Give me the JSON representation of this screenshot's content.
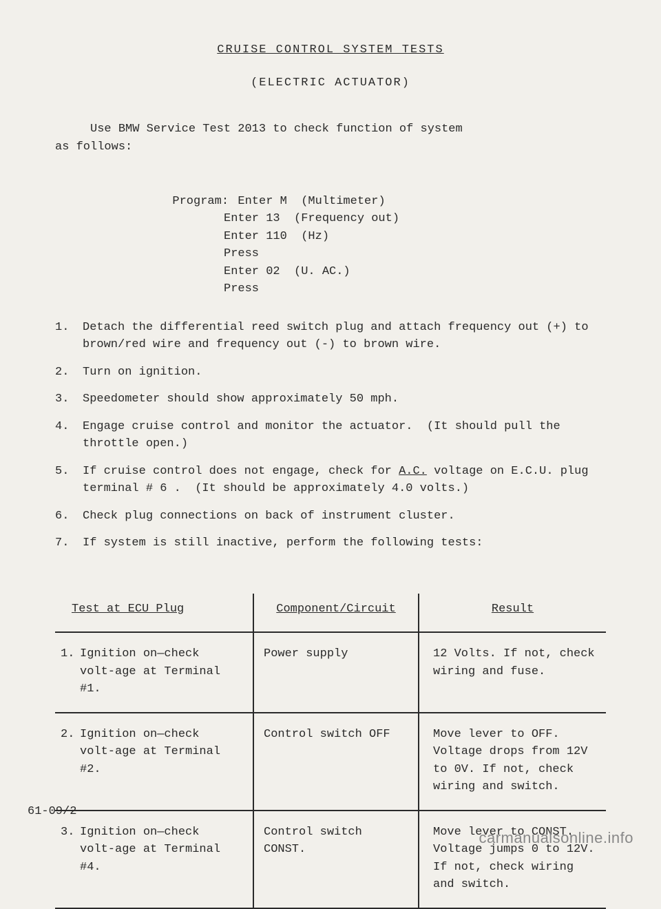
{
  "title": "CRUISE  CONTROL  SYSTEM  TESTS",
  "subtitle": "(ELECTRIC  ACTUATOR)",
  "intro": "     Use BMW Service Test 2013 to check function of system\nas follows:",
  "program": {
    "label": "Program:",
    "lines": [
      "Enter M  (Multimeter)",
      "Enter 13  (Frequency out)",
      "Enter 110  (Hz)",
      "Press",
      "Enter 02  (U. AC.)",
      "Press"
    ]
  },
  "steps": [
    {
      "num": "1.",
      "text": "Detach the differential reed switch plug and attach frequency out (+) to brown/red wire and frequency out (-) to brown wire."
    },
    {
      "num": "2.",
      "text": "Turn on ignition."
    },
    {
      "num": "3.",
      "text": "Speedometer should show approximately 50 mph."
    },
    {
      "num": "4.",
      "text": "Engage cruise control and monitor the actuator.  (It should pull the throttle open.)"
    },
    {
      "num": "5.",
      "text_pre": "If cruise control does not engage, check for ",
      "text_underline": "A.C.",
      "text_post": " voltage on E.C.U. plug terminal # 6 .  (It should be approximately 4.0 volts.)"
    },
    {
      "num": "6.",
      "text": "Check plug connections on back of instrument cluster."
    },
    {
      "num": "7.",
      "text": "If system is still inactive, perform the following tests:"
    }
  ],
  "table": {
    "headers": [
      "Test at ECU Plug",
      "Component/Circuit",
      "Result"
    ],
    "rows": [
      {
        "num": "1.",
        "test": "Ignition on—check volt-age at Terminal #1.",
        "component": "Power supply",
        "result": "12 Volts.  If not, check wiring and fuse."
      },
      {
        "num": "2.",
        "test": "Ignition on—check volt-age at Terminal #2.",
        "component": "Control switch OFF",
        "result": "Move lever to OFF. Voltage drops from 12V to 0V.  If not, check wiring and switch."
      },
      {
        "num": "3.",
        "test": "Ignition on—check volt-age at Terminal #4.",
        "component": "Control switch CONST.",
        "result": "Move lever to CONST. Voltage jumps 0 to 12V.  If not, check wiring and switch."
      }
    ]
  },
  "pageNum": "61-09/2",
  "watermark": "carmanualsonline.info"
}
